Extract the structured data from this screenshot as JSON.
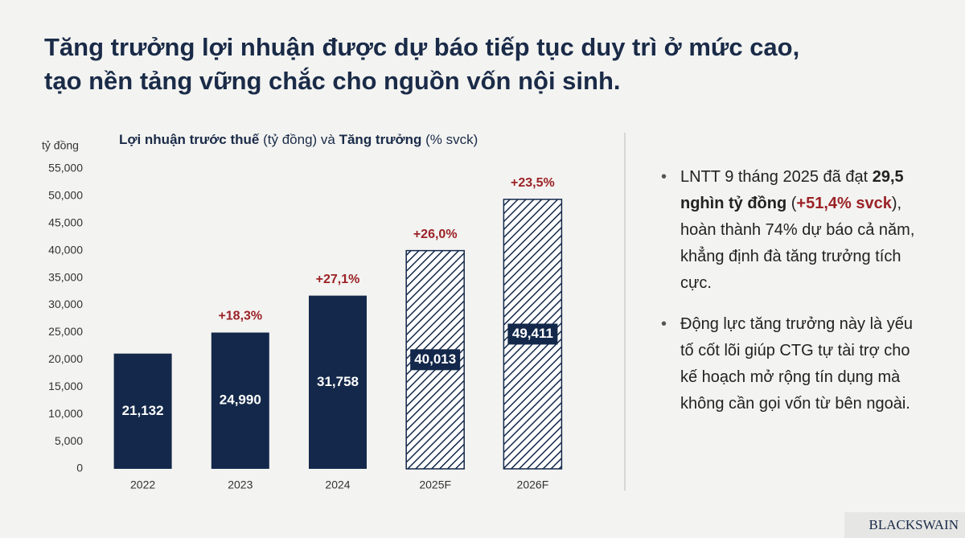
{
  "title": [
    "Tăng trưởng lợi nhuận được dự báo tiếp tục duy trì ở mức cao,",
    "tạo nền tảng vững chắc cho nguồn vốn nội sinh."
  ],
  "chart_data": {
    "type": "bar",
    "title_parts": [
      {
        "text": "Lợi nhuận trước thuế",
        "bold": true
      },
      {
        "text": " (tỷ đồng) và "
      },
      {
        "text": "Tăng trưởng",
        "bold": true
      },
      {
        "text": " (% svck)"
      }
    ],
    "y_label": "tỷ đồng",
    "categories": [
      "2022",
      "2023",
      "2024",
      "2025F",
      "2026F"
    ],
    "values": [
      21132,
      24990,
      31758,
      40013,
      49411
    ],
    "value_labels": [
      "21,132",
      "24,990",
      "31,758",
      "40,013",
      "49,411"
    ],
    "forecast": [
      false,
      false,
      false,
      true,
      true
    ],
    "color": "#13284a",
    "growth": {
      "values": [
        null,
        18.3,
        27.1,
        26.0,
        23.5
      ],
      "value_labels": [
        null,
        "+18,3%",
        "+27,1%",
        "+26,0%",
        "+23,5%"
      ],
      "color": "#9b2226"
    },
    "ylim": [
      0,
      55000
    ],
    "yticks": [
      0,
      {
        "value": 5000,
        "label": "5,000"
      },
      {
        "value": 10000,
        "label": "10,000"
      },
      {
        "value": 15000,
        "label": "15,000"
      },
      {
        "value": 20000,
        "label": "20,000"
      },
      {
        "value": 25000,
        "label": "25,000"
      },
      {
        "value": 30000,
        "label": "30,000"
      },
      {
        "value": 35000,
        "label": "35,000"
      },
      {
        "value": 40000,
        "label": "40,000"
      },
      {
        "value": 45000,
        "label": "45,000"
      },
      {
        "value": 50000,
        "label": "50,000"
      },
      {
        "value": 55000,
        "label": "55,000"
      }
    ],
    "grid": false
  },
  "bullets": [
    [
      {
        "text": "LNTT 9 tháng 2025 đã đạt "
      },
      {
        "text": "29,5 nghìn tỷ đồng",
        "bold": true
      },
      {
        "text": " ("
      },
      {
        "text": "+51,4% svck",
        "bold": true,
        "color": "#9b2226"
      },
      {
        "text": "), hoàn thành 74% dự báo cả năm, khẳng định đà tăng trưởng tích cực."
      }
    ],
    [
      {
        "text": "Động lực tăng trưởng này là yếu tố cốt lõi giúp CTG tự tài trợ cho kế hoạch mở rộng tín dụng mà không cần gọi vốn từ bên ngoài."
      }
    ]
  ],
  "logo": "BLACKSWAIN"
}
